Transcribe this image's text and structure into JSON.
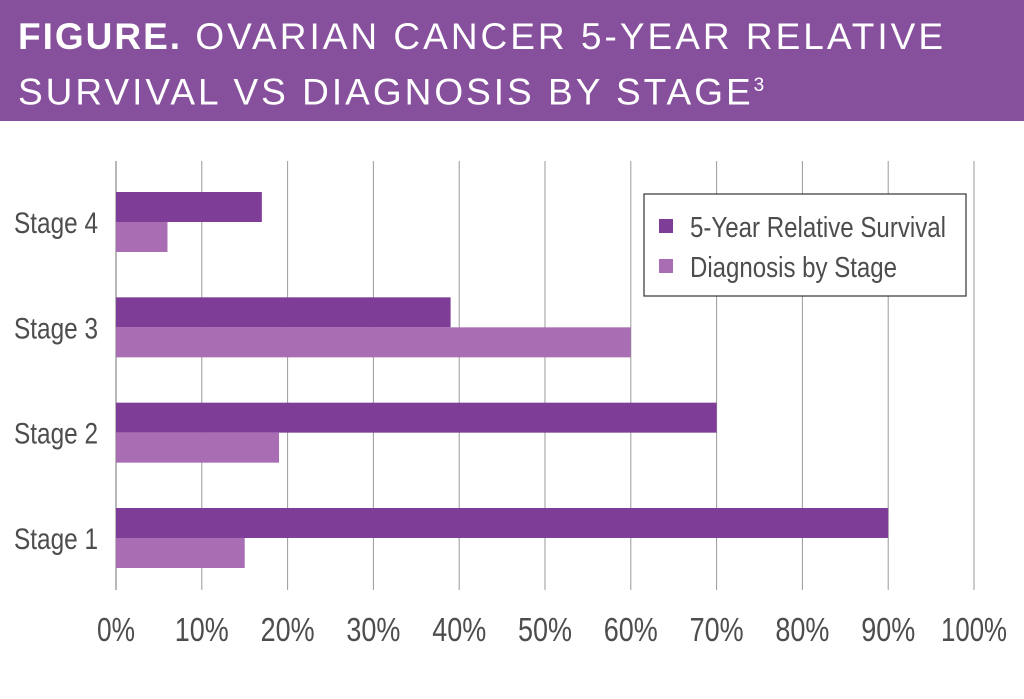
{
  "header": {
    "label": "FIGURE.",
    "title_line1": "OVARIAN CANCER 5-YEAR RELATIVE",
    "title_line2": "SURVIVAL VS DIAGNOSIS BY STAGE",
    "superscript": "3"
  },
  "colors": {
    "header_bg": "#86509c",
    "survival": "#7e3e97",
    "diagnosis": "#a86db3",
    "gridline": "#7a7a7a",
    "text": "#4d4d4f"
  },
  "chart_data": {
    "type": "bar",
    "orientation": "horizontal",
    "title": "OVARIAN CANCER 5-YEAR RELATIVE SURVIVAL VS DIAGNOSIS BY STAGE",
    "categories": [
      "Stage 4",
      "Stage 3",
      "Stage 2",
      "Stage 1"
    ],
    "series": [
      {
        "name": "5-Year Relative Survival",
        "values": [
          17,
          39,
          70,
          90
        ]
      },
      {
        "name": "Diagnosis by Stage",
        "values": [
          6,
          60,
          19,
          15
        ]
      }
    ],
    "xlim": [
      0,
      100
    ],
    "xticks": [
      0,
      10,
      20,
      30,
      40,
      50,
      60,
      70,
      80,
      90,
      100
    ],
    "xtick_labels": [
      "0%",
      "10%",
      "20%",
      "30%",
      "40%",
      "50%",
      "60%",
      "70%",
      "80%",
      "90%",
      "100%"
    ],
    "grid": true,
    "legend_position": "top-right"
  }
}
